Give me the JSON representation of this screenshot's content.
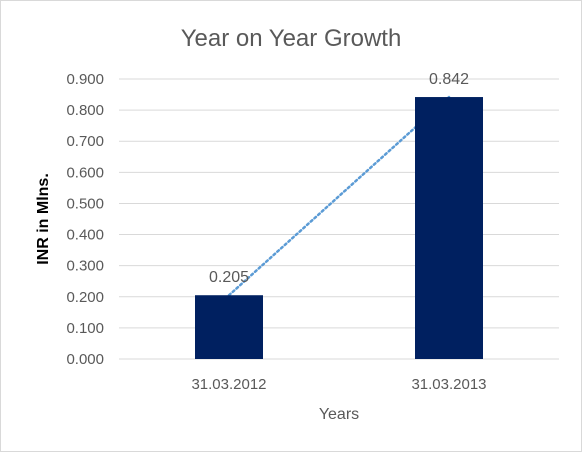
{
  "chart_data": {
    "type": "bar",
    "title": "Year on Year Growth",
    "xlabel": "Years",
    "ylabel": "INR in Mlns.",
    "categories": [
      "31.03.2012",
      "31.03.2013"
    ],
    "series": [
      {
        "values": [
          0.205,
          0.842
        ],
        "value_labels": [
          "0.205",
          "0.842"
        ],
        "color": "#002060"
      }
    ],
    "trendline": {
      "type": "linear",
      "style": "dotted",
      "color": "#5b9bd5"
    },
    "ylim": [
      0,
      0.9
    ],
    "yticks": [
      0,
      0.1,
      0.2,
      0.3,
      0.4,
      0.5,
      0.6,
      0.7,
      0.8,
      0.9
    ],
    "ytick_labels": [
      "0.000",
      "0.100",
      "0.200",
      "0.300",
      "0.400",
      "0.500",
      "0.600",
      "0.700",
      "0.800",
      "0.900"
    ],
    "grid": true,
    "legend": "none",
    "colors": {
      "grid": "#d9d9d9",
      "text": "#595959",
      "axis_title": "#000000"
    }
  }
}
